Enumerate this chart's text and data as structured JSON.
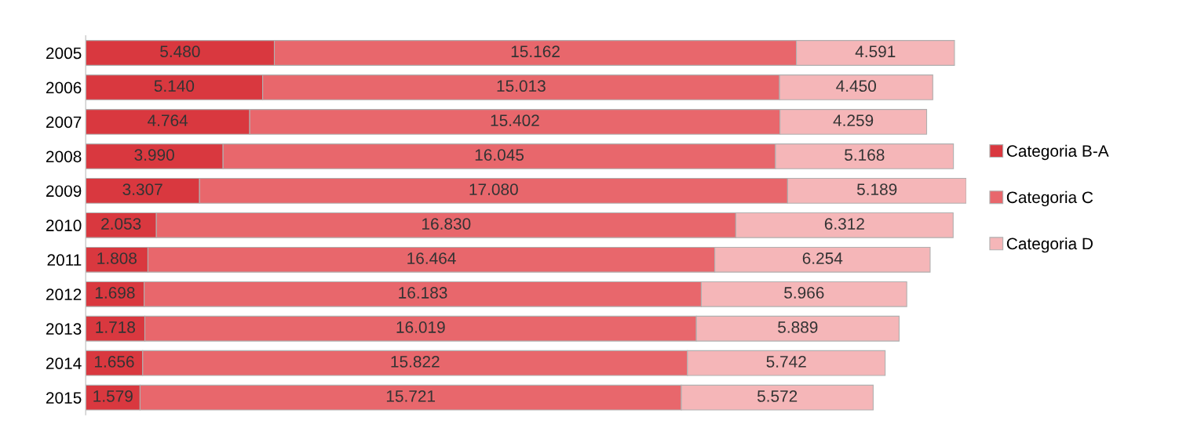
{
  "chart_data": {
    "type": "bar",
    "orientation": "horizontal",
    "stacked": true,
    "categories": [
      "2005",
      "2006",
      "2007",
      "2008",
      "2009",
      "2010",
      "2011",
      "2012",
      "2013",
      "2014",
      "2015"
    ],
    "series": [
      {
        "name": "Categoria B-A",
        "color": "#d9383f",
        "values": [
          5480,
          5140,
          4764,
          3990,
          3307,
          2053,
          1808,
          1698,
          1718,
          1656,
          1579
        ],
        "value_labels": [
          "5.480",
          "5.140",
          "4.764",
          "3.990",
          "3.307",
          "2.053",
          "1.808",
          "1.698",
          "1.718",
          "1.656",
          "1.579"
        ]
      },
      {
        "name": "Categoria C",
        "color": "#e8676c",
        "values": [
          15162,
          15013,
          15402,
          16045,
          17080,
          16830,
          16464,
          16183,
          16019,
          15822,
          15721
        ],
        "value_labels": [
          "15.162",
          "15.013",
          "15.402",
          "16.045",
          "17.080",
          "16.830",
          "16.464",
          "16.183",
          "16.019",
          "15.822",
          "15.721"
        ]
      },
      {
        "name": "Categoria D",
        "color": "#f5b6b8",
        "values": [
          4591,
          4450,
          4259,
          5168,
          5189,
          6312,
          6254,
          5966,
          5889,
          5742,
          5572
        ],
        "value_labels": [
          "4.591",
          "4.450",
          "4.259",
          "5.168",
          "5.189",
          "6.312",
          "6.254",
          "5.966",
          "5.889",
          "5.742",
          "5.572"
        ]
      }
    ],
    "legend": "right",
    "grid": false,
    "tick_labels": "y"
  }
}
